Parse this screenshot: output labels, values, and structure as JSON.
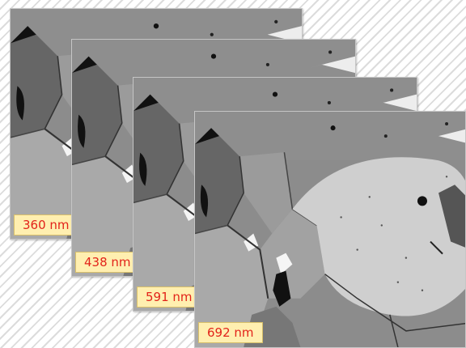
{
  "panels": [
    {
      "wavelength_label": "360 nm"
    },
    {
      "wavelength_label": "438 nm"
    },
    {
      "wavelength_label": "591 nm"
    },
    {
      "wavelength_label": "692 nm"
    }
  ],
  "colors": {
    "label_background": "#ffefb0",
    "label_text": "#e2231a",
    "background_stripe": "#dcdcdc"
  }
}
